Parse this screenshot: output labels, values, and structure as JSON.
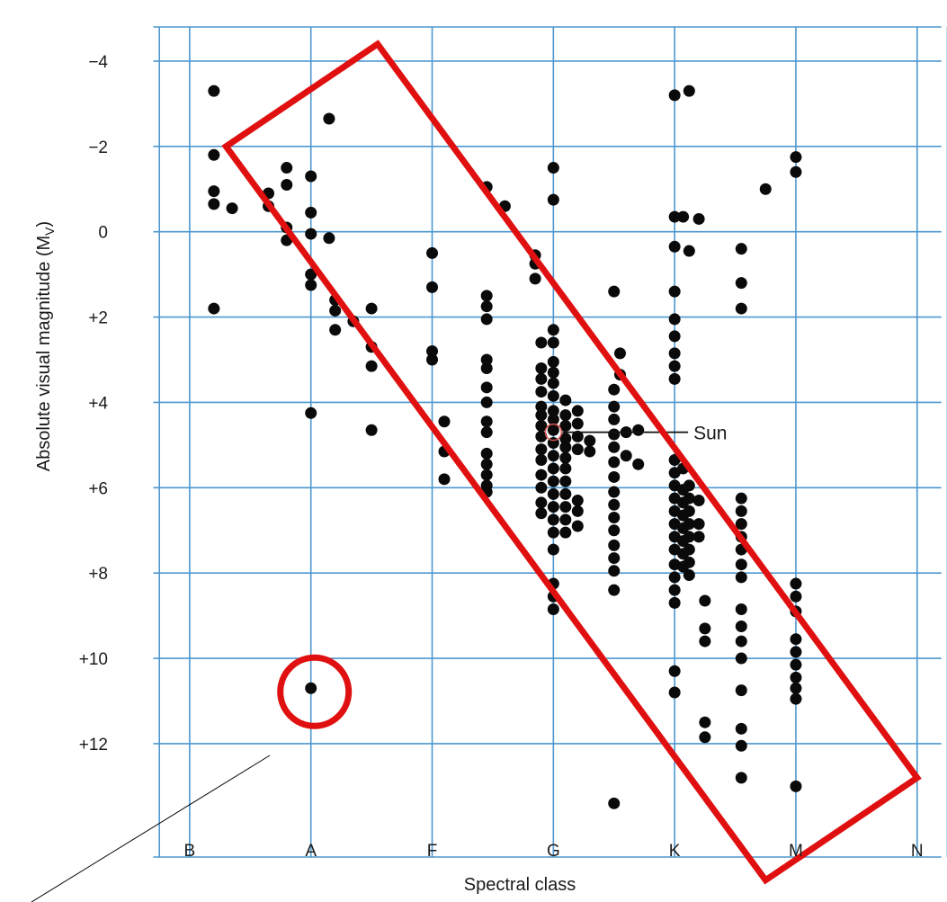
{
  "chart_data": {
    "type": "scatter",
    "title": "",
    "xlabel": "Spectral class",
    "ylabel": "Absolute visual magnitude (M",
    "ylabel_subscript": "V",
    "ylabel_close": ")",
    "x_categories": [
      "B",
      "A",
      "F",
      "G",
      "K",
      "M",
      "N"
    ],
    "xlim": [
      -0.6,
      6.15
    ],
    "ylim": [
      -4.8,
      14.7
    ],
    "y_inverted": true,
    "y_ticks": [
      {
        "value": -4,
        "label": "−4"
      },
      {
        "value": -2,
        "label": "−2"
      },
      {
        "value": 0,
        "label": "0"
      },
      {
        "value": 2,
        "label": "+2"
      },
      {
        "value": 4,
        "label": "+4"
      },
      {
        "value": 6,
        "label": "+6"
      },
      {
        "value": 8,
        "label": "+8"
      },
      {
        "value": 10,
        "label": "+10"
      },
      {
        "value": 12,
        "label": "+12"
      }
    ],
    "grid": true,
    "x_grid_values": [
      -0.25,
      0,
      1,
      2,
      3,
      4,
      5,
      6,
      6.25
    ],
    "y_grid_values": [
      -4,
      -2,
      0,
      2,
      4,
      6,
      8,
      10,
      12
    ],
    "annotations": [
      {
        "text": "Sun",
        "x": 3.0,
        "y": 4.7,
        "label_x": 4.2,
        "label_y": 4.7
      }
    ],
    "highlights": {
      "main_sequence_band": {
        "corners": [
          [
            0.3,
            -2.0
          ],
          [
            1.55,
            -4.4
          ],
          [
            6.0,
            12.8
          ],
          [
            4.75,
            15.2
          ]
        ],
        "color": "#e01010"
      },
      "white_dwarf_circle": {
        "x": 1.0,
        "y": 10.7,
        "color": "#e01010"
      }
    },
    "series": [
      {
        "points": [
          [
            0.2,
            -3.3
          ],
          [
            0.2,
            -1.8
          ],
          [
            0.2,
            -0.95
          ],
          [
            0.2,
            -0.65
          ],
          [
            0.2,
            1.8
          ],
          [
            0.35,
            -0.55
          ],
          [
            0.65,
            -0.9
          ],
          [
            0.65,
            -0.6
          ],
          [
            0.8,
            -1.5
          ],
          [
            0.8,
            -1.1
          ],
          [
            0.8,
            -0.1
          ],
          [
            0.8,
            0.2
          ],
          [
            1.0,
            -1.3
          ],
          [
            1.0,
            -0.45
          ],
          [
            1.0,
            0.05
          ],
          [
            1.0,
            1.0
          ],
          [
            1.0,
            1.25
          ],
          [
            1.0,
            4.25
          ],
          [
            1.0,
            10.7
          ],
          [
            1.15,
            -2.65
          ],
          [
            1.15,
            0.15
          ],
          [
            1.2,
            1.6
          ],
          [
            1.2,
            1.85
          ],
          [
            1.2,
            2.3
          ],
          [
            1.35,
            2.1
          ],
          [
            1.5,
            1.8
          ],
          [
            1.5,
            2.7
          ],
          [
            1.5,
            3.15
          ],
          [
            1.5,
            4.65
          ],
          [
            2.0,
            0.5
          ],
          [
            2.0,
            1.3
          ],
          [
            2.0,
            2.8
          ],
          [
            2.0,
            3.0
          ],
          [
            2.1,
            4.45
          ],
          [
            2.1,
            5.15
          ],
          [
            2.1,
            5.8
          ],
          [
            2.45,
            -1.05
          ],
          [
            2.45,
            1.5
          ],
          [
            2.45,
            1.75
          ],
          [
            2.45,
            2.05
          ],
          [
            2.45,
            3.0
          ],
          [
            2.45,
            3.2
          ],
          [
            2.45,
            3.65
          ],
          [
            2.45,
            4.0
          ],
          [
            2.45,
            4.45
          ],
          [
            2.45,
            4.7
          ],
          [
            2.45,
            5.2
          ],
          [
            2.45,
            5.45
          ],
          [
            2.45,
            5.7
          ],
          [
            2.45,
            5.95
          ],
          [
            2.45,
            6.1
          ],
          [
            2.6,
            -0.6
          ],
          [
            2.85,
            0.55
          ],
          [
            2.85,
            0.75
          ],
          [
            2.85,
            1.1
          ],
          [
            2.9,
            2.6
          ],
          [
            2.9,
            3.2
          ],
          [
            2.9,
            3.45
          ],
          [
            2.9,
            3.75
          ],
          [
            2.9,
            4.1
          ],
          [
            2.9,
            4.3
          ],
          [
            2.9,
            4.55
          ],
          [
            2.9,
            4.8
          ],
          [
            2.9,
            5.1
          ],
          [
            2.9,
            5.35
          ],
          [
            2.9,
            5.7
          ],
          [
            2.9,
            6.0
          ],
          [
            2.9,
            6.35
          ],
          [
            2.9,
            6.6
          ],
          [
            3.0,
            -1.5
          ],
          [
            3.0,
            -0.75
          ],
          [
            3.0,
            2.3
          ],
          [
            3.0,
            2.6
          ],
          [
            3.0,
            3.05
          ],
          [
            3.0,
            3.3
          ],
          [
            3.0,
            3.55
          ],
          [
            3.0,
            3.85
          ],
          [
            3.0,
            4.2
          ],
          [
            3.0,
            4.4
          ],
          [
            3.0,
            4.65
          ],
          [
            3.0,
            4.95
          ],
          [
            3.0,
            5.25
          ],
          [
            3.0,
            5.55
          ],
          [
            3.0,
            5.85
          ],
          [
            3.0,
            6.15
          ],
          [
            3.0,
            6.45
          ],
          [
            3.0,
            6.75
          ],
          [
            3.0,
            7.05
          ],
          [
            3.0,
            7.45
          ],
          [
            3.0,
            8.25
          ],
          [
            3.0,
            8.55
          ],
          [
            3.0,
            8.85
          ],
          [
            3.1,
            3.95
          ],
          [
            3.1,
            4.3
          ],
          [
            3.1,
            4.55
          ],
          [
            3.1,
            4.85
          ],
          [
            3.1,
            5.05
          ],
          [
            3.1,
            5.3
          ],
          [
            3.1,
            5.55
          ],
          [
            3.1,
            5.85
          ],
          [
            3.1,
            6.15
          ],
          [
            3.1,
            6.45
          ],
          [
            3.1,
            6.75
          ],
          [
            3.1,
            7.05
          ],
          [
            3.2,
            4.2
          ],
          [
            3.2,
            4.5
          ],
          [
            3.2,
            4.8
          ],
          [
            3.2,
            5.1
          ],
          [
            3.2,
            6.3
          ],
          [
            3.2,
            6.55
          ],
          [
            3.2,
            6.9
          ],
          [
            3.3,
            4.9
          ],
          [
            3.3,
            5.15
          ],
          [
            3.5,
            1.4
          ],
          [
            3.5,
            3.7
          ],
          [
            3.5,
            4.1
          ],
          [
            3.5,
            4.4
          ],
          [
            3.5,
            4.75
          ],
          [
            3.5,
            5.05
          ],
          [
            3.5,
            5.4
          ],
          [
            3.5,
            5.75
          ],
          [
            3.5,
            6.1
          ],
          [
            3.5,
            6.4
          ],
          [
            3.5,
            6.7
          ],
          [
            3.5,
            7.0
          ],
          [
            3.5,
            7.35
          ],
          [
            3.5,
            7.65
          ],
          [
            3.5,
            7.95
          ],
          [
            3.5,
            8.4
          ],
          [
            3.5,
            13.4
          ],
          [
            3.55,
            2.85
          ],
          [
            3.55,
            3.35
          ],
          [
            3.6,
            4.7
          ],
          [
            3.6,
            5.25
          ],
          [
            3.7,
            4.65
          ],
          [
            3.7,
            5.45
          ],
          [
            4.0,
            -3.2
          ],
          [
            4.0,
            -0.35
          ],
          [
            4.0,
            0.35
          ],
          [
            4.0,
            1.4
          ],
          [
            4.0,
            2.05
          ],
          [
            4.0,
            2.45
          ],
          [
            4.0,
            2.85
          ],
          [
            4.0,
            3.15
          ],
          [
            4.0,
            3.45
          ],
          [
            4.0,
            5.35
          ],
          [
            4.0,
            5.65
          ],
          [
            4.0,
            5.95
          ],
          [
            4.0,
            6.25
          ],
          [
            4.0,
            6.55
          ],
          [
            4.0,
            6.85
          ],
          [
            4.0,
            7.15
          ],
          [
            4.0,
            7.45
          ],
          [
            4.0,
            7.8
          ],
          [
            4.0,
            8.1
          ],
          [
            4.0,
            8.4
          ],
          [
            4.0,
            8.7
          ],
          [
            4.0,
            10.3
          ],
          [
            4.0,
            10.8
          ],
          [
            4.07,
            -0.35
          ],
          [
            4.07,
            5.55
          ],
          [
            4.07,
            6.05
          ],
          [
            4.07,
            6.35
          ],
          [
            4.07,
            6.65
          ],
          [
            4.07,
            6.95
          ],
          [
            4.07,
            7.25
          ],
          [
            4.07,
            7.55
          ],
          [
            4.07,
            7.85
          ],
          [
            4.12,
            -3.3
          ],
          [
            4.12,
            0.45
          ],
          [
            4.12,
            5.95
          ],
          [
            4.12,
            6.25
          ],
          [
            4.12,
            6.55
          ],
          [
            4.12,
            6.85
          ],
          [
            4.12,
            7.15
          ],
          [
            4.12,
            7.45
          ],
          [
            4.12,
            7.75
          ],
          [
            4.12,
            8.05
          ],
          [
            4.2,
            -0.3
          ],
          [
            4.2,
            6.3
          ],
          [
            4.2,
            6.85
          ],
          [
            4.2,
            7.15
          ],
          [
            4.25,
            8.65
          ],
          [
            4.25,
            9.3
          ],
          [
            4.25,
            9.6
          ],
          [
            4.25,
            11.5
          ],
          [
            4.25,
            11.85
          ],
          [
            4.55,
            0.4
          ],
          [
            4.55,
            1.2
          ],
          [
            4.55,
            1.8
          ],
          [
            4.55,
            6.25
          ],
          [
            4.55,
            6.55
          ],
          [
            4.55,
            6.85
          ],
          [
            4.55,
            7.15
          ],
          [
            4.55,
            7.45
          ],
          [
            4.55,
            7.8
          ],
          [
            4.55,
            8.1
          ],
          [
            4.55,
            8.85
          ],
          [
            4.55,
            9.25
          ],
          [
            4.55,
            9.6
          ],
          [
            4.55,
            10.0
          ],
          [
            4.55,
            10.75
          ],
          [
            4.55,
            11.65
          ],
          [
            4.55,
            12.05
          ],
          [
            4.55,
            12.8
          ],
          [
            4.75,
            -1.0
          ],
          [
            5.0,
            -1.75
          ],
          [
            5.0,
            -1.4
          ],
          [
            5.0,
            8.25
          ],
          [
            5.0,
            8.55
          ],
          [
            5.0,
            8.9
          ],
          [
            5.0,
            9.55
          ],
          [
            5.0,
            9.85
          ],
          [
            5.0,
            10.15
          ],
          [
            5.0,
            10.45
          ],
          [
            5.0,
            10.7
          ],
          [
            5.0,
            10.95
          ],
          [
            5.0,
            13.0
          ]
        ]
      }
    ]
  }
}
